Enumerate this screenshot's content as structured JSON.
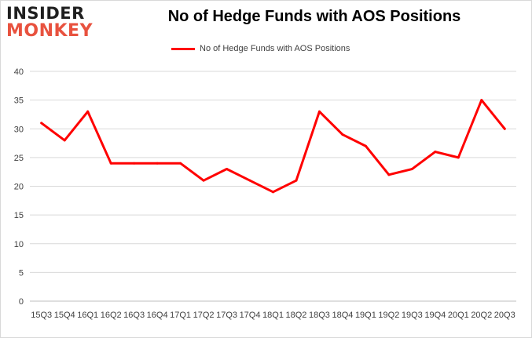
{
  "logo": {
    "top_text": "INSIDER",
    "bottom_text": "MONKEY"
  },
  "chart_data": {
    "type": "line",
    "title": "No of Hedge Funds with AOS Positions",
    "xlabel": "",
    "ylabel": "",
    "ylim": [
      0,
      40
    ],
    "yticks": [
      0,
      5,
      10,
      15,
      20,
      25,
      30,
      35,
      40
    ],
    "grid": true,
    "legend_position": "top",
    "categories": [
      "15Q3",
      "15Q4",
      "16Q1",
      "16Q2",
      "16Q3",
      "16Q4",
      "17Q1",
      "17Q2",
      "17Q3",
      "17Q4",
      "18Q1",
      "18Q2",
      "18Q3",
      "18Q4",
      "19Q1",
      "19Q2",
      "19Q3",
      "19Q4",
      "20Q1",
      "20Q2",
      "20Q3"
    ],
    "series": [
      {
        "name": "No of Hedge Funds with AOS Positions",
        "color": "#ff0000",
        "values": [
          31,
          28,
          33,
          24,
          24,
          24,
          24,
          21,
          23,
          21,
          19,
          21,
          33,
          29,
          27,
          22,
          23,
          26,
          25,
          35,
          30
        ]
      }
    ]
  }
}
